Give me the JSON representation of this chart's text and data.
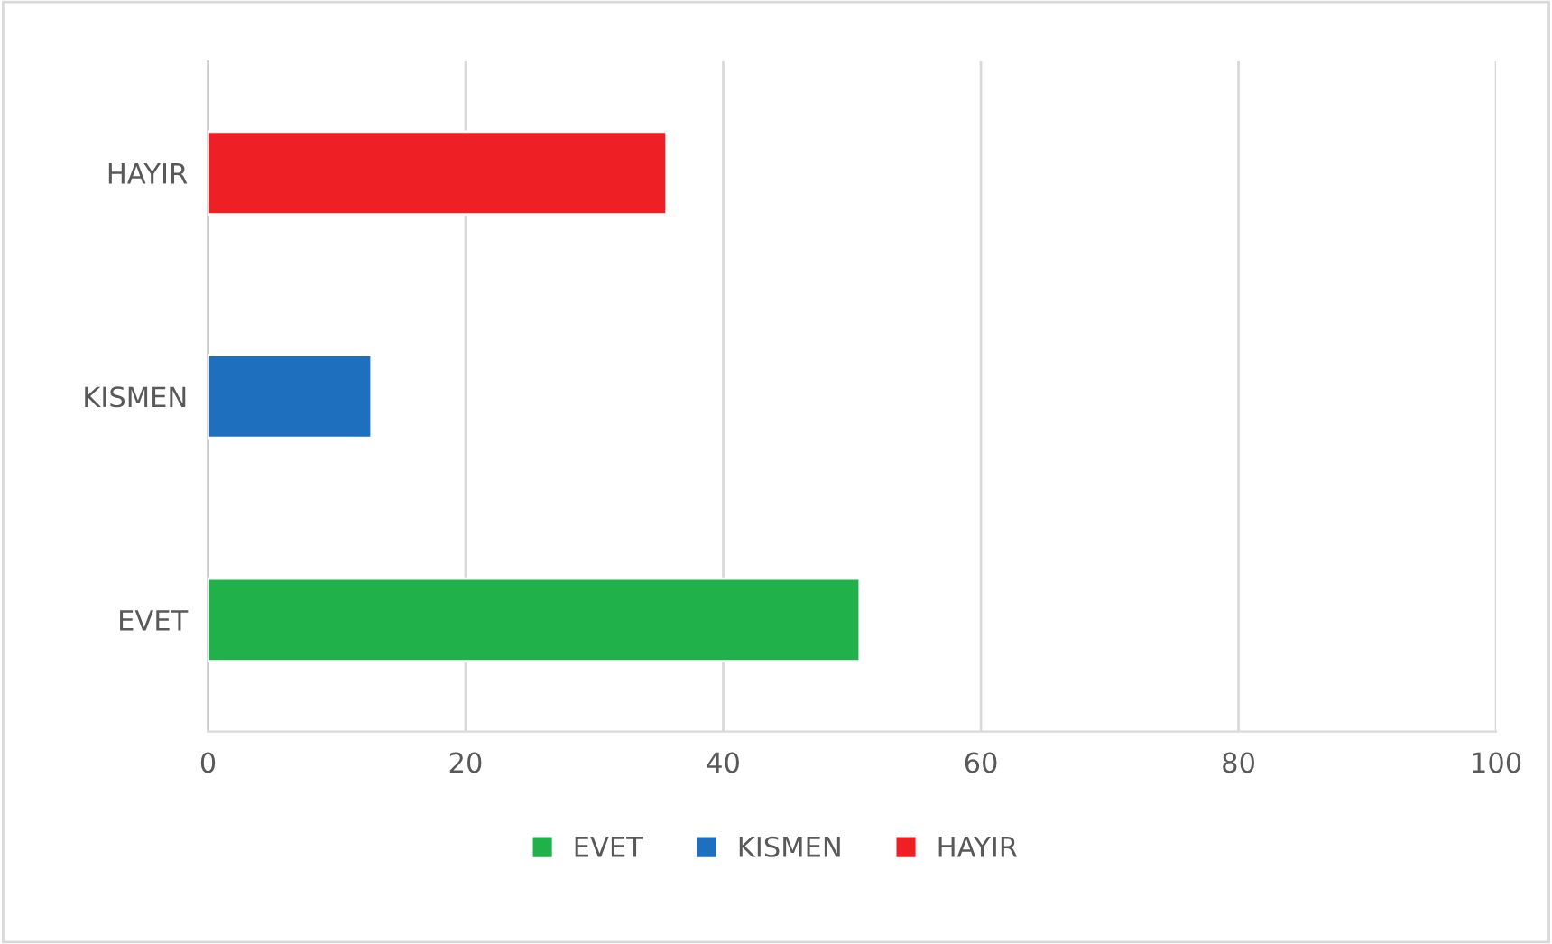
{
  "chart_data": {
    "type": "bar",
    "orientation": "horizontal",
    "categories": [
      "HAYIR",
      "KISMEN",
      "EVET"
    ],
    "series": [
      {
        "name": "EVET",
        "color": "#21b14b",
        "values": [
          null,
          null,
          50.6
        ]
      },
      {
        "name": "KISMEN",
        "color": "#1f6fbf",
        "values": [
          null,
          12.7,
          null
        ]
      },
      {
        "name": "HAYIR",
        "color": "#ee1f25",
        "values": [
          35.6,
          null,
          null
        ]
      }
    ],
    "xlim": [
      0,
      100
    ],
    "xticks": [
      0,
      20,
      40,
      60,
      80,
      100
    ],
    "grid": "x",
    "legend": "bottom"
  }
}
